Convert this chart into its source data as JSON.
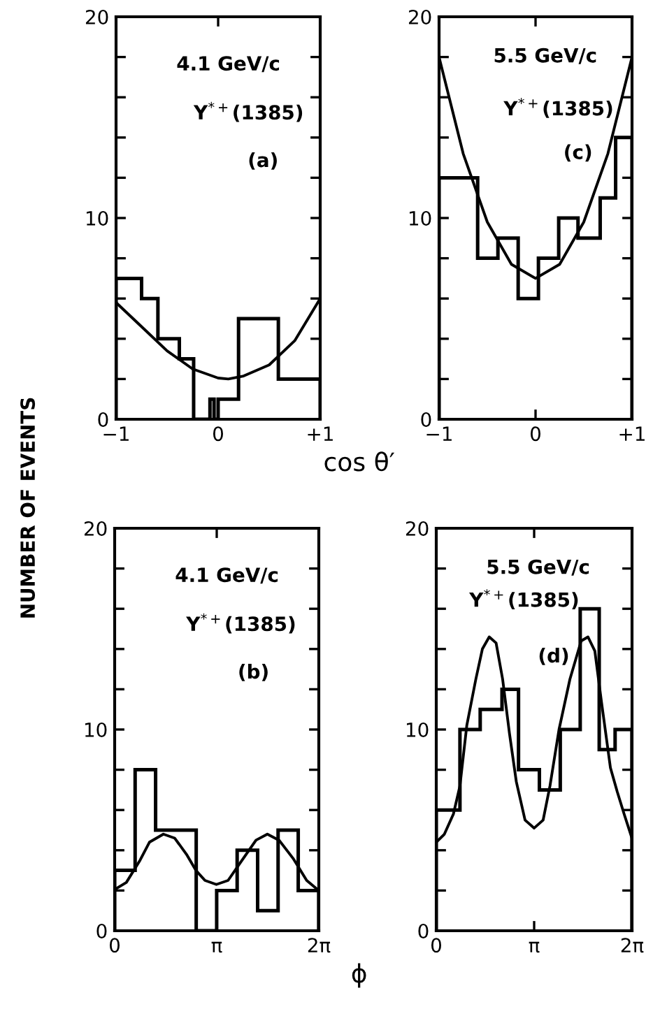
{
  "chart_data": [
    {
      "type": "histogram",
      "ylabel": "NUMBER OF EVENTS",
      "xlabel": "cos θ′",
      "xlim": [
        -1,
        1
      ],
      "ylim": [
        0,
        20
      ],
      "xticks": [
        {
          "value": -1,
          "label": "−1"
        },
        0,
        {
          "value": 1,
          "label": "+1"
        }
      ],
      "yticks": [
        0,
        {
          "value": 2,
          "label": null
        },
        {
          "value": 4,
          "label": null
        },
        {
          "value": 6,
          "label": null
        },
        {
          "value": 8,
          "label": null
        },
        10,
        {
          "value": 12,
          "label": null
        },
        {
          "value": 14,
          "label": null
        },
        {
          "value": 16,
          "label": null
        },
        {
          "value": 18,
          "label": null
        },
        20
      ],
      "annotations": [
        "4.1 GeV/c",
        "Y$^{*+}$(1385)",
        "(a)"
      ],
      "series": [
        {
          "color": "#000000",
          "bins": [
            -1,
            -0.75,
            -0.59,
            -0.38,
            -0.24,
            -0.08,
            -0.04,
            0.0,
            0.2,
            0.59,
            1
          ],
          "values": [
            7,
            6,
            4,
            3,
            0,
            1,
            0,
            1,
            5,
            2
          ]
        },
        {
          "type": "line",
          "color": "#000000",
          "x": [
            -1,
            -0.75,
            -0.5,
            -0.25,
            0,
            0.1,
            0.25,
            0.5,
            0.75,
            1
          ],
          "values": [
            5.8,
            4.6,
            3.4,
            2.5,
            2.05,
            2.0,
            2.15,
            2.7,
            3.9,
            6.0
          ]
        }
      ]
    },
    {
      "type": "histogram",
      "xlim": [
        -1,
        1
      ],
      "ylim": [
        0,
        20
      ],
      "xticks": [
        {
          "value": -1,
          "label": "−1"
        },
        0,
        {
          "value": 1,
          "label": "+1"
        }
      ],
      "yticks": [
        0,
        {
          "value": 2,
          "label": null
        },
        {
          "value": 4,
          "label": null
        },
        {
          "value": 6,
          "label": null
        },
        {
          "value": 8,
          "label": null
        },
        10,
        {
          "value": 12,
          "label": null
        },
        {
          "value": 14,
          "label": null
        },
        {
          "value": 16,
          "label": null
        },
        {
          "value": 18,
          "label": null
        },
        20
      ],
      "annotations": [
        "5.5 GeV/c",
        "Y$^{*+}$(1385)",
        "(c)"
      ],
      "series": [
        {
          "color": "#000000",
          "bins": [
            -1,
            -0.6,
            -0.39,
            -0.18,
            0.03,
            0.24,
            0.44,
            0.67,
            0.83,
            1
          ],
          "values": [
            12,
            8,
            9,
            6,
            8,
            10,
            9,
            11,
            14
          ]
        },
        {
          "type": "line",
          "color": "#000000",
          "x": [
            -1,
            -0.75,
            -0.5,
            -0.25,
            0,
            0.25,
            0.5,
            0.75,
            1
          ],
          "values": [
            18,
            13.2,
            9.8,
            7.7,
            7.0,
            7.7,
            9.8,
            13.2,
            18
          ]
        }
      ]
    },
    {
      "type": "histogram",
      "xlabel": "ϕ",
      "xlim": [
        0,
        6.2832
      ],
      "ylim": [
        0,
        20
      ],
      "xticks": [
        0,
        {
          "value": 3.1416,
          "label": "π"
        },
        {
          "value": 6.2832,
          "label": "2π"
        }
      ],
      "yticks": [
        0,
        {
          "value": 2,
          "label": null
        },
        {
          "value": 4,
          "label": null
        },
        {
          "value": 6,
          "label": null
        },
        {
          "value": 8,
          "label": null
        },
        10,
        {
          "value": 12,
          "label": null
        },
        {
          "value": 14,
          "label": null
        },
        {
          "value": 16,
          "label": null
        },
        {
          "value": 18,
          "label": null
        },
        20
      ],
      "annotations": [
        "4.1 GeV/c",
        "Y$^{*+}$(1385)",
        "(b)"
      ],
      "series": [
        {
          "color": "#000000",
          "bins": [
            0,
            0.63,
            1.26,
            2.51,
            3.14,
            3.77,
            4.4,
            5.03,
            5.65,
            6.28
          ],
          "values": [
            3,
            8,
            5,
            0,
            2,
            4,
            1,
            5,
            2
          ]
        },
        {
          "type": "line",
          "color": "#000000",
          "x": [
            0,
            0.36,
            0.78,
            1.07,
            1.5,
            1.85,
            2.21,
            2.5,
            2.78,
            3.13,
            3.49,
            3.92,
            4.35,
            4.7,
            5.06,
            5.49,
            5.91,
            6.28
          ],
          "values": [
            2.05,
            2.4,
            3.5,
            4.4,
            4.8,
            4.6,
            3.8,
            3.0,
            2.5,
            2.3,
            2.5,
            3.5,
            4.5,
            4.8,
            4.5,
            3.6,
            2.5,
            2.0
          ]
        }
      ]
    },
    {
      "type": "histogram",
      "xlim": [
        0,
        6.2832
      ],
      "ylim": [
        0,
        20
      ],
      "xticks": [
        0,
        {
          "value": 3.1416,
          "label": "π"
        },
        {
          "value": 6.2832,
          "label": "2π"
        }
      ],
      "yticks": [
        0,
        {
          "value": 2,
          "label": null
        },
        {
          "value": 4,
          "label": null
        },
        {
          "value": 6,
          "label": null
        },
        {
          "value": 8,
          "label": null
        },
        10,
        {
          "value": 12,
          "label": null
        },
        {
          "value": 14,
          "label": null
        },
        {
          "value": 16,
          "label": null
        },
        {
          "value": 18,
          "label": null
        },
        20
      ],
      "annotations": [
        "5.5 GeV/c",
        "Y$^{*+}$(1385)",
        "(d)"
      ],
      "series": [
        {
          "color": "#000000",
          "bins": [
            0,
            0.76,
            1.41,
            2.11,
            2.64,
            3.31,
            3.98,
            4.62,
            5.23,
            5.74,
            6.28
          ],
          "values": [
            6,
            10,
            11,
            12,
            8,
            7,
            10,
            16,
            9,
            10
          ]
        },
        {
          "type": "line",
          "color": "#000000",
          "x": [
            0,
            0.26,
            0.55,
            0.76,
            0.98,
            1.27,
            1.48,
            1.7,
            1.92,
            2.13,
            2.35,
            2.57,
            2.85,
            3.14,
            3.43,
            3.65,
            3.94,
            4.29,
            4.65,
            4.87,
            5.09,
            5.3,
            5.59,
            5.81,
            6.03,
            6.28
          ],
          "values": [
            4.4,
            4.8,
            5.8,
            7.2,
            10.2,
            12.5,
            14.0,
            14.6,
            14.3,
            12.5,
            9.8,
            7.4,
            5.5,
            5.1,
            5.5,
            7.2,
            10.0,
            12.5,
            14.4,
            14.6,
            13.9,
            11.4,
            8.1,
            6.9,
            5.8,
            4.6
          ]
        }
      ]
    }
  ]
}
